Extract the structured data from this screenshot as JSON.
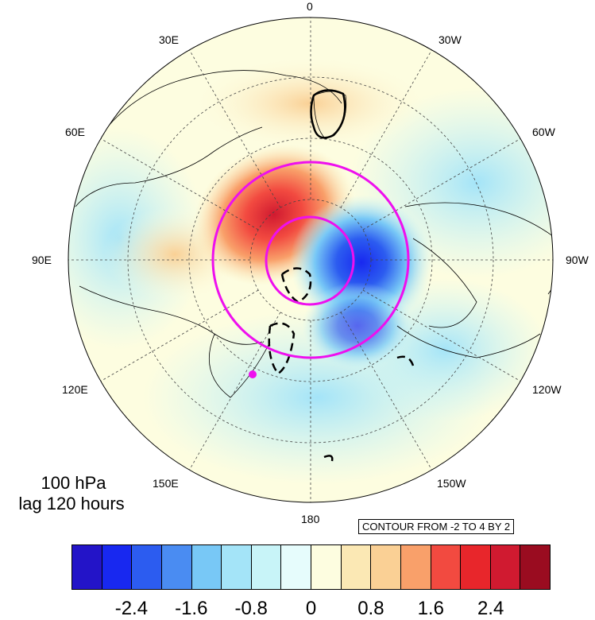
{
  "map": {
    "projection": "north polar stereographic",
    "longitude_labels": [
      {
        "id": "0",
        "text": "0"
      },
      {
        "id": "30e",
        "text": "30E"
      },
      {
        "id": "30w",
        "text": "30W"
      },
      {
        "id": "60e",
        "text": "60E"
      },
      {
        "id": "60w",
        "text": "60W"
      },
      {
        "id": "90e",
        "text": "90E"
      },
      {
        "id": "90w",
        "text": "90W"
      },
      {
        "id": "120e",
        "text": "120E"
      },
      {
        "id": "120w",
        "text": "120W"
      },
      {
        "id": "150e",
        "text": "150E"
      },
      {
        "id": "150w",
        "text": "150W"
      },
      {
        "id": "180",
        "text": "180"
      }
    ],
    "level_label": "100 hPa",
    "lag_label": "lag 120 hours",
    "contour_info": "CONTOUR FROM -2 TO 4 BY 2",
    "colors": {
      "positive_anomaly": "#e8262b",
      "negative_anomaly": "#2350e0",
      "circle": "#ee10ee",
      "contour": "#000000"
    }
  },
  "colorbar": {
    "colors": [
      "#2314c8",
      "#1828f0",
      "#2c5cf0",
      "#4a8cf2",
      "#78c8f6",
      "#a4e4f8",
      "#c8f4f8",
      "#e6fcfc",
      "#fdfde0",
      "#fbe8b4",
      "#fad095",
      "#f9a06a",
      "#f24a40",
      "#e8262b",
      "#d01a30",
      "#9a0c20"
    ],
    "tick_labels": [
      "-2.4",
      "-1.6",
      "-0.8",
      "0",
      "0.8",
      "1.6",
      "2.4"
    ]
  }
}
